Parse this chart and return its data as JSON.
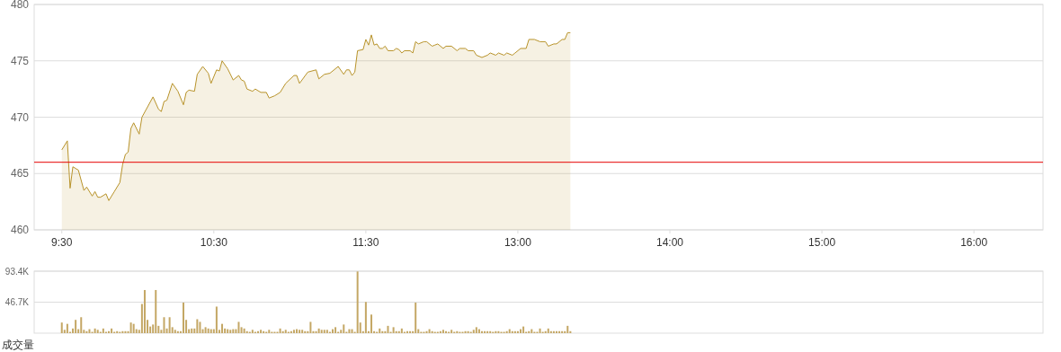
{
  "chart_data": [
    {
      "type": "area",
      "ylim": [
        460,
        480
      ],
      "yticks": [
        460,
        465,
        470,
        475,
        480
      ],
      "categories": [
        "9:30",
        null,
        null,
        null,
        null,
        null,
        null,
        null,
        null,
        null,
        null,
        null,
        null,
        null,
        null,
        null,
        null,
        null,
        null,
        null,
        null,
        null,
        null,
        null,
        null,
        null,
        null,
        null,
        null,
        null,
        null,
        null,
        null,
        null,
        null,
        null,
        null,
        null,
        null,
        null,
        null,
        null,
        null,
        null,
        null,
        null,
        null,
        null,
        null,
        null,
        null,
        null,
        null,
        null,
        null,
        "10:30",
        null,
        null,
        null,
        null,
        null,
        null,
        null,
        null,
        null,
        null,
        null,
        null,
        null,
        null,
        null,
        null,
        null,
        null,
        null,
        null,
        null,
        null,
        null,
        null,
        null,
        null,
        null,
        null,
        null,
        null,
        null,
        null,
        null,
        null,
        null,
        null,
        null,
        null,
        null,
        null,
        null,
        null,
        null,
        null,
        null,
        null,
        null,
        null,
        null,
        null,
        null,
        null,
        null,
        null,
        "11:30",
        null,
        null,
        null,
        null,
        null,
        null,
        null,
        null,
        null,
        null,
        null,
        null,
        null,
        null,
        null,
        null,
        null,
        null,
        null,
        null,
        null,
        null,
        null,
        null,
        null,
        null,
        null,
        null,
        null,
        null,
        null,
        null,
        null,
        null,
        null,
        null,
        null,
        null,
        null,
        null,
        null,
        null,
        null,
        null,
        null,
        null,
        null,
        null,
        null,
        null,
        null,
        null,
        null,
        null,
        "13:00",
        null,
        null,
        null,
        null,
        null,
        null,
        null,
        null,
        null,
        null,
        null,
        null,
        null,
        null,
        null,
        null,
        null,
        null,
        null,
        null,
        null,
        null,
        null,
        null,
        null,
        null,
        null,
        null,
        null,
        null,
        null,
        null,
        null,
        null,
        null,
        null,
        null,
        null,
        null,
        null,
        null,
        null,
        null,
        null,
        null,
        null,
        null,
        null,
        null,
        null,
        null,
        null,
        null,
        null,
        "14:00",
        null,
        null,
        null,
        null,
        null,
        null,
        null,
        null,
        null,
        null,
        null,
        null,
        null,
        null,
        null,
        null,
        null,
        null,
        null,
        null,
        null,
        null,
        null,
        null,
        null,
        null,
        null,
        null,
        null,
        null,
        null,
        null,
        null,
        null,
        null,
        null,
        null,
        null,
        null,
        null,
        null,
        null,
        null,
        null,
        null,
        null,
        null,
        null,
        null,
        null,
        null,
        null,
        null,
        null,
        "15:00",
        null,
        null,
        null,
        null,
        null,
        null,
        null,
        null,
        null,
        null,
        null,
        null,
        null,
        null,
        null,
        null,
        null,
        null,
        null,
        null,
        null,
        null,
        null,
        null,
        null,
        null,
        null,
        null,
        null,
        null,
        null,
        null,
        null,
        null,
        null,
        null,
        null,
        null,
        null,
        null,
        null,
        null,
        null,
        null,
        null,
        null,
        null,
        null,
        null,
        null,
        null,
        null,
        null,
        null,
        "16:00",
        null,
        null,
        null,
        null,
        null,
        null,
        null,
        null,
        null,
        null,
        null,
        null,
        null,
        null,
        null,
        null,
        null,
        null,
        null,
        null,
        null,
        null,
        null,
        null,
        null
      ],
      "grid": "y",
      "ref_lines": [
        {
          "axis": "y",
          "value": 466.0,
          "color": "#e60000"
        }
      ],
      "series": [
        {
          "color": "#b8932a",
          "values": [
            467.1,
            null,
            467.9,
            463.7,
            465.6,
            null,
            465.3,
            null,
            463.5,
            463.8,
            null,
            463.0,
            463.4,
            462.9,
            462.9,
            null,
            463.2,
            462.6,
            null,
            463.4,
            null,
            464.2,
            465.8,
            466.7,
            466.9,
            469.0,
            469.5,
            null,
            468.5,
            470.0,
            null,
            null,
            null,
            471.8,
            null,
            470.7,
            470.5,
            471.4,
            471.5,
            null,
            473.0,
            null,
            472.3,
            null,
            471.1,
            472.2,
            472.4,
            null,
            472.3,
            473.8,
            null,
            474.5,
            null,
            473.9,
            473.0,
            null,
            474.2,
            474.1,
            475.0,
            null,
            474.3,
            null,
            473.3,
            null,
            473.7,
            473.3,
            473.2,
            472.5,
            null,
            472.3,
            472.5,
            null,
            472.2,
            null,
            472.2,
            471.7,
            null,
            471.9,
            null,
            472.2,
            null,
            473.0,
            null,
            null,
            473.7,
            473.7,
            473.0,
            null,
            null,
            474.0,
            null,
            null,
            474.2,
            473.4,
            null,
            473.8,
            null,
            473.9,
            null,
            null,
            474.5,
            null,
            473.8,
            474.2,
            474.2,
            473.7,
            474.0,
            475.9,
            null,
            476.0,
            476.9,
            476.4,
            477.3,
            476.4,
            476.5,
            476.1,
            476.1,
            476.3,
            475.9,
            null,
            475.9,
            476.1,
            476.0,
            475.7,
            475.9,
            null,
            475.9,
            475.7,
            476.7,
            476.5,
            null,
            476.7,
            476.7,
            null,
            476.3,
            476.4,
            476.5,
            null,
            476.1,
            476.3,
            null,
            476.3,
            null,
            475.9,
            476.1,
            null,
            476.1,
            475.9,
            null,
            475.9,
            475.5,
            null,
            475.3,
            null,
            475.5,
            475.7,
            null,
            475.5,
            475.7,
            null,
            475.5,
            475.7,
            null,
            475.5,
            475.7,
            null,
            476.1,
            null,
            476.1,
            476.9,
            null,
            476.9,
            null,
            476.7,
            null,
            476.7,
            476.3,
            null,
            476.5,
            476.5,
            null,
            476.9,
            476.9,
            477.5,
            477.5,
            null,
            null,
            null,
            null,
            null,
            null,
            null,
            null,
            null,
            null,
            null,
            null,
            null,
            null,
            null,
            null,
            null,
            null,
            null,
            null,
            null,
            null,
            null,
            null,
            null,
            null,
            null,
            null,
            null,
            null,
            null,
            null,
            null,
            null,
            null,
            null,
            null,
            null,
            null,
            null,
            null,
            null,
            null,
            null,
            null,
            null,
            null,
            null,
            null,
            null,
            null,
            null,
            null,
            null,
            null,
            null,
            null,
            null,
            null,
            null,
            null,
            null,
            null,
            null,
            null,
            null,
            null,
            null,
            null,
            null,
            null,
            null,
            null,
            null,
            null,
            null,
            null,
            null,
            null,
            null,
            null,
            null,
            null,
            null,
            null,
            null,
            null,
            null,
            null,
            null,
            null,
            null,
            null,
            null,
            null,
            null,
            null,
            null,
            null,
            null,
            null,
            null,
            null,
            null,
            null,
            null,
            null,
            null,
            null,
            null,
            null,
            null,
            null,
            null,
            null,
            null,
            null,
            null,
            null,
            null,
            null,
            null,
            null,
            null,
            null,
            null,
            null,
            null,
            null,
            null,
            null,
            null,
            null,
            null,
            null,
            null,
            null,
            null,
            null,
            null,
            null,
            null,
            null,
            null,
            null,
            null,
            null,
            null,
            null,
            null,
            null,
            null,
            null,
            null,
            null,
            null,
            null,
            null,
            null,
            null,
            null,
            null,
            null,
            null,
            null,
            null,
            null,
            null,
            null,
            null,
            null
          ]
        }
      ]
    },
    {
      "type": "bar",
      "ylim": [
        0,
        93.4
      ],
      "yticks": [
        {
          "value": 46.7,
          "label": "46.7K"
        },
        {
          "value": 93.4,
          "label": "93.4K"
        }
      ],
      "grid": "y",
      "tick_labels": "y",
      "xlabel": "成交量",
      "color": "#c4a765",
      "categories": [
        null,
        null,
        null,
        null,
        null,
        null,
        null,
        null,
        null,
        null,
        null,
        null,
        null,
        null,
        null,
        null,
        null,
        null,
        null,
        null,
        null,
        null,
        null,
        null,
        null,
        null,
        null,
        null,
        null,
        null,
        null,
        null,
        null,
        null,
        null,
        null,
        null,
        null,
        null,
        null,
        null,
        null,
        null,
        null,
        null,
        null,
        null,
        null,
        null,
        null,
        null,
        null,
        null,
        null,
        null,
        null,
        null,
        null,
        null,
        null,
        null,
        null,
        null,
        null,
        null,
        null,
        null,
        null,
        null,
        null,
        null,
        null,
        null,
        null,
        null,
        null,
        null,
        null,
        null,
        null,
        null,
        null,
        null,
        null,
        null,
        null,
        null,
        null,
        null,
        null,
        null,
        null,
        null,
        null,
        null,
        null,
        null,
        null,
        null,
        null,
        null,
        null,
        null,
        null,
        null,
        null,
        null,
        null,
        null,
        null,
        null,
        null,
        null,
        null,
        null,
        null,
        null,
        null,
        null,
        null,
        null,
        null,
        null,
        null,
        null,
        null,
        null,
        null,
        null,
        null,
        null,
        null,
        null,
        null,
        null,
        null,
        null,
        null,
        null,
        null,
        null,
        null,
        null,
        null,
        null,
        null,
        null,
        null,
        null,
        null,
        null,
        null,
        null,
        null,
        null,
        null,
        null,
        null,
        null,
        null,
        null,
        null,
        null,
        null,
        null,
        null,
        null,
        null,
        null,
        null,
        null,
        null,
        null,
        null,
        null,
        null,
        null,
        null,
        null,
        null,
        null,
        null,
        null,
        null,
        null,
        null,
        null,
        null,
        null,
        null,
        null,
        null,
        null,
        null,
        null,
        null,
        null,
        null,
        null,
        null,
        null,
        null,
        null,
        null,
        null,
        null,
        null,
        null,
        null,
        null,
        null,
        null,
        null,
        null,
        null,
        null,
        null,
        null,
        null,
        null,
        null,
        null,
        null,
        null,
        null,
        null,
        null,
        null,
        null,
        null,
        null,
        null,
        null,
        null,
        null,
        null,
        null,
        null,
        null,
        null,
        null,
        null,
        null,
        null,
        null,
        null,
        null,
        null,
        null,
        null,
        null,
        null,
        null,
        null,
        null,
        null,
        null,
        null,
        null,
        null,
        null,
        null,
        null,
        null,
        null,
        null,
        null,
        null,
        null,
        null,
        null,
        null,
        null,
        null,
        null,
        null,
        null,
        null,
        null,
        null,
        null,
        null,
        null,
        null,
        null,
        null,
        null,
        null,
        null,
        null,
        null,
        null,
        null,
        null,
        null,
        null,
        null,
        null,
        null,
        null,
        null,
        null,
        null,
        null,
        null,
        null,
        null,
        null,
        null,
        null,
        null,
        null,
        null,
        null,
        null,
        null,
        null,
        null,
        null,
        null,
        null,
        null,
        null,
        null,
        null,
        null,
        null,
        null,
        null,
        null,
        null,
        null,
        null,
        null,
        null,
        null,
        null,
        null,
        null,
        null,
        null,
        null,
        null,
        null,
        null,
        null,
        null,
        null,
        null,
        null,
        null,
        null,
        null,
        null,
        null,
        null
      ],
      "values": [
        16,
        5,
        14,
        2,
        7,
        20,
        6,
        24,
        5,
        3,
        6,
        2,
        7,
        5,
        2,
        7,
        2,
        3,
        7,
        2,
        3,
        2,
        3,
        3,
        3,
        16,
        14,
        6,
        5,
        44,
        65,
        20,
        10,
        13,
        65,
        11,
        5,
        24,
        7,
        24,
        9,
        5,
        3,
        3,
        46,
        20,
        6,
        7,
        7,
        21,
        17,
        6,
        9,
        7,
        6,
        6,
        40,
        5,
        14,
        7,
        6,
        5,
        6,
        6,
        17,
        9,
        7,
        3,
        2,
        5,
        2,
        3,
        5,
        3,
        2,
        5,
        2,
        2,
        2,
        7,
        3,
        5,
        2,
        3,
        5,
        6,
        5,
        5,
        3,
        3,
        17,
        3,
        3,
        7,
        5,
        5,
        5,
        2,
        6,
        9,
        2,
        5,
        13,
        2,
        6,
        6,
        2,
        93,
        16,
        3,
        47,
        3,
        28,
        3,
        2,
        7,
        3,
        3,
        11,
        2,
        9,
        3,
        3,
        7,
        2,
        3,
        3,
        3,
        46,
        6,
        2,
        2,
        3,
        6,
        3,
        2,
        2,
        3,
        5,
        3,
        2,
        5,
        2,
        3,
        2,
        2,
        3,
        3,
        2,
        5,
        9,
        6,
        3,
        3,
        3,
        3,
        2,
        3,
        3,
        2,
        2,
        3,
        6,
        3,
        3,
        3,
        6,
        10,
        2,
        3,
        6,
        2,
        2,
        7,
        2,
        3,
        7,
        3,
        3,
        3,
        3,
        3,
        3,
        11,
        3,
        null,
        null,
        null,
        null,
        null,
        null,
        null,
        null,
        null,
        null,
        null,
        null,
        null,
        null,
        null,
        null,
        null,
        null,
        null,
        null,
        null,
        null,
        null,
        null,
        null,
        null,
        null,
        null,
        null,
        null,
        null,
        null,
        null,
        null,
        null,
        null,
        null,
        null,
        null,
        null,
        null,
        null,
        null,
        null,
        null,
        null,
        null,
        null,
        null,
        null,
        null,
        null,
        null,
        null,
        null,
        null,
        null,
        null,
        null,
        null,
        null,
        null,
        null,
        null,
        null,
        null,
        null,
        null,
        null,
        null,
        null,
        null,
        null,
        null,
        null,
        null,
        null,
        null,
        null,
        null,
        null,
        null,
        null,
        null,
        null,
        null,
        null,
        null,
        null,
        null,
        null,
        null,
        null,
        null,
        null,
        null,
        null,
        null,
        null,
        null,
        null,
        null,
        null,
        null,
        null,
        null,
        null,
        null,
        null,
        null,
        null,
        null,
        null,
        null,
        null,
        null,
        null,
        null,
        null,
        null,
        null,
        null,
        null,
        null,
        null,
        null,
        null,
        null,
        null,
        null,
        null,
        null,
        null,
        null,
        null,
        null,
        null,
        null,
        null,
        null,
        null,
        null,
        null,
        null,
        null,
        null,
        null,
        null,
        null,
        null,
        null,
        null,
        null,
        null,
        null,
        null,
        null,
        null,
        null,
        null,
        null,
        null,
        null,
        null,
        null,
        null,
        null,
        null,
        null,
        null,
        null
      ]
    }
  ]
}
